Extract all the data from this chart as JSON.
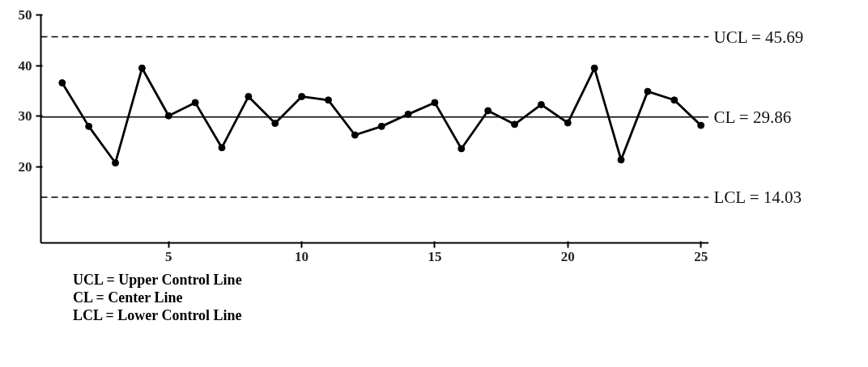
{
  "chart_data": {
    "type": "line",
    "x": [
      1,
      2,
      3,
      4,
      5,
      6,
      7,
      8,
      9,
      10,
      11,
      12,
      13,
      14,
      15,
      16,
      17,
      18,
      19,
      20,
      21,
      22,
      23,
      24,
      25
    ],
    "series": [
      {
        "color": "#000000",
        "values": [
          36.6,
          28.0,
          20.8,
          39.5,
          30.1,
          32.7,
          23.8,
          33.9,
          28.6,
          33.9,
          33.2,
          26.3,
          28.0,
          30.4,
          32.7,
          23.6,
          31.1,
          28.4,
          32.3,
          28.7,
          39.5,
          21.4,
          34.9,
          33.2,
          28.2
        ]
      }
    ],
    "xlim": [
      0.2,
      25.3
    ],
    "xticks": [
      5,
      10,
      15,
      20,
      25
    ],
    "ylim": [
      5,
      50
    ],
    "yticks": [
      20,
      30,
      40,
      50
    ],
    "marker": "circle",
    "line_style": "solid",
    "grid": false,
    "ref_lines": [
      {
        "axis": "y",
        "value": 45.69,
        "label": "UCL = 45.69",
        "line_style": "dashed",
        "color": "#000000"
      },
      {
        "axis": "y",
        "value": 29.86,
        "label": "CL = 29.86",
        "line_style": "solid",
        "color": "#000000"
      },
      {
        "axis": "y",
        "value": 14.03,
        "label": "LCL = 14.03",
        "line_style": "dashed",
        "color": "#000000"
      }
    ],
    "annotations": [
      "UCL = Upper Control Line",
      "CL = Center Line",
      "LCL = Lower Control Line"
    ]
  }
}
